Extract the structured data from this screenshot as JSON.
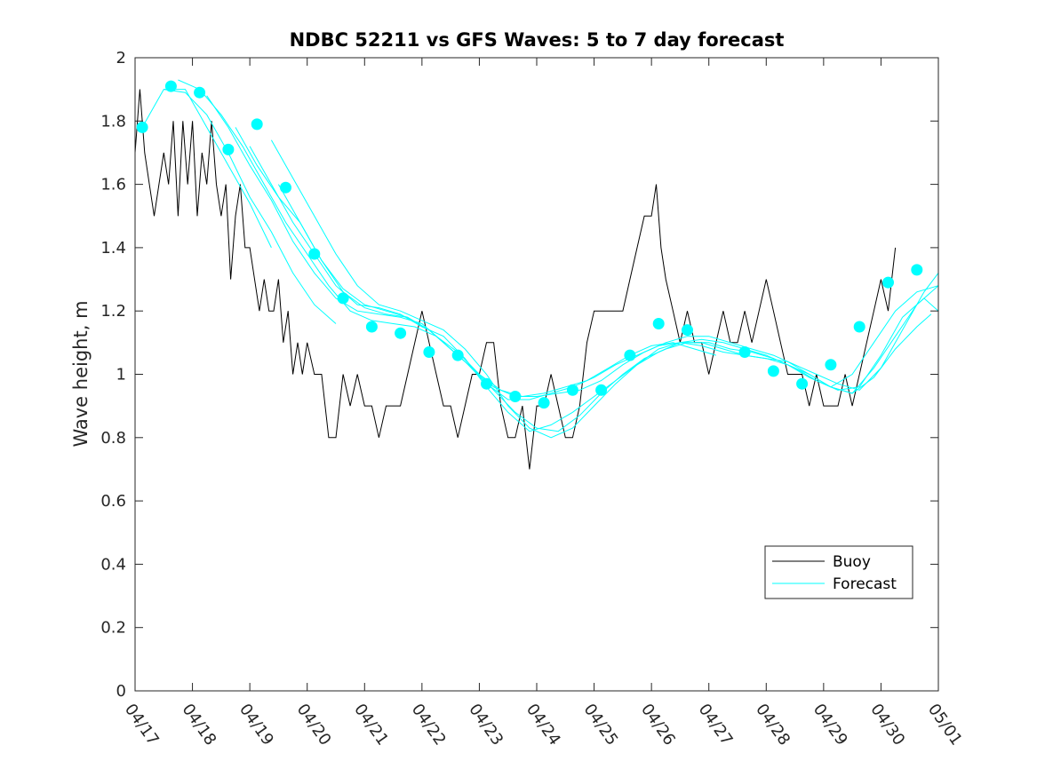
{
  "chart_data": {
    "type": "line",
    "title": "NDBC 52211 vs GFS Waves: 5 to 7 day forecast",
    "xlabel": "",
    "ylabel": "Wave height, m",
    "ylim": [
      0,
      2
    ],
    "yticks": [
      0,
      0.2,
      0.4,
      0.6,
      0.8,
      1,
      1.2,
      1.4,
      1.6,
      1.8,
      2
    ],
    "ytick_labels": [
      "0",
      "0.2",
      "0.4",
      "0.6",
      "0.8",
      "1",
      "1.2",
      "1.4",
      "1.6",
      "1.8",
      "2"
    ],
    "x_range": [
      "04/17",
      "05/01"
    ],
    "xtick_labels": [
      "04/17",
      "04/18",
      "04/19",
      "04/20",
      "04/21",
      "04/22",
      "04/23",
      "04/24",
      "04/25",
      "04/26",
      "04/27",
      "04/28",
      "04/29",
      "04/30",
      "05/01"
    ],
    "grid": false,
    "legend": {
      "position": "bottom-right",
      "entries": [
        {
          "label": "Buoy",
          "color": "#000000"
        },
        {
          "label": "Forecast",
          "color": "#00ffff"
        }
      ]
    },
    "colors": {
      "buoy": "#000000",
      "forecast": "#00ffff",
      "markers": "#00ffff"
    },
    "buoy": {
      "x": [
        "04/17 00:00",
        "04/17 02:00",
        "04/17 04:00",
        "04/17 06:00",
        "04/17 08:00",
        "04/17 10:00",
        "04/17 12:00",
        "04/17 14:00",
        "04/17 16:00",
        "04/17 18:00",
        "04/17 20:00",
        "04/17 22:00",
        "04/18 00:00",
        "04/18 02:00",
        "04/18 04:00",
        "04/18 06:00",
        "04/18 08:00",
        "04/18 10:00",
        "04/18 12:00",
        "04/18 14:00",
        "04/18 16:00",
        "04/18 18:00",
        "04/18 20:00",
        "04/18 22:00",
        "04/19 00:00",
        "04/19 02:00",
        "04/19 04:00",
        "04/19 06:00",
        "04/19 08:00",
        "04/19 10:00",
        "04/19 12:00",
        "04/19 14:00",
        "04/19 16:00",
        "04/19 18:00",
        "04/19 20:00",
        "04/19 22:00",
        "04/20 00:00",
        "04/20 03:00",
        "04/20 06:00",
        "04/20 09:00",
        "04/20 12:00",
        "04/20 15:00",
        "04/20 18:00",
        "04/20 21:00",
        "04/21 00:00",
        "04/21 03:00",
        "04/21 06:00",
        "04/21 09:00",
        "04/21 12:00",
        "04/21 15:00",
        "04/21 18:00",
        "04/21 21:00",
        "04/22 00:00",
        "04/22 03:00",
        "04/22 06:00",
        "04/22 09:00",
        "04/22 12:00",
        "04/22 15:00",
        "04/22 18:00",
        "04/22 21:00",
        "04/23 00:00",
        "04/23 03:00",
        "04/23 06:00",
        "04/23 09:00",
        "04/23 12:00",
        "04/23 15:00",
        "04/23 18:00",
        "04/23 21:00",
        "04/24 00:00",
        "04/24 03:00",
        "04/24 06:00",
        "04/24 09:00",
        "04/24 12:00",
        "04/24 15:00",
        "04/24 18:00",
        "04/24 21:00",
        "04/25 00:00",
        "04/25 03:00",
        "04/25 06:00",
        "04/25 09:00",
        "04/25 12:00",
        "04/25 15:00",
        "04/25 18:00",
        "04/25 21:00",
        "04/26 00:00",
        "04/26 02:00",
        "04/26 04:00",
        "04/26 06:00",
        "04/26 09:00",
        "04/26 12:00",
        "04/26 15:00",
        "04/26 18:00",
        "04/26 21:00",
        "04/27 00:00",
        "04/27 03:00",
        "04/27 06:00",
        "04/27 09:00",
        "04/27 12:00",
        "04/27 15:00",
        "04/27 18:00",
        "04/27 21:00",
        "04/28 00:00",
        "04/28 03:00",
        "04/28 06:00",
        "04/28 09:00",
        "04/28 12:00",
        "04/28 15:00",
        "04/28 18:00",
        "04/28 21:00",
        "04/29 00:00",
        "04/29 03:00",
        "04/29 06:00",
        "04/29 09:00",
        "04/29 12:00",
        "04/29 15:00",
        "04/29 18:00",
        "04/29 21:00",
        "04/30 00:00",
        "04/30 03:00",
        "04/30 06:00"
      ],
      "y": [
        1.7,
        1.9,
        1.7,
        1.6,
        1.5,
        1.6,
        1.7,
        1.6,
        1.8,
        1.5,
        1.8,
        1.6,
        1.8,
        1.5,
        1.7,
        1.6,
        1.8,
        1.6,
        1.5,
        1.6,
        1.3,
        1.5,
        1.6,
        1.4,
        1.4,
        1.3,
        1.2,
        1.3,
        1.2,
        1.2,
        1.3,
        1.1,
        1.2,
        1.0,
        1.1,
        1.0,
        1.1,
        1.0,
        1.0,
        0.8,
        0.8,
        1.0,
        0.9,
        1.0,
        0.9,
        0.9,
        0.8,
        0.9,
        0.9,
        0.9,
        1.0,
        1.1,
        1.2,
        1.1,
        1.0,
        0.9,
        0.9,
        0.8,
        0.9,
        1.0,
        1.0,
        1.1,
        1.1,
        0.9,
        0.8,
        0.8,
        0.9,
        0.7,
        0.9,
        0.9,
        1.0,
        0.9,
        0.8,
        0.8,
        0.9,
        1.1,
        1.2,
        1.2,
        1.2,
        1.2,
        1.2,
        1.3,
        1.4,
        1.5,
        1.5,
        1.6,
        1.4,
        1.3,
        1.2,
        1.1,
        1.2,
        1.1,
        1.1,
        1.0,
        1.1,
        1.2,
        1.1,
        1.1,
        1.2,
        1.1,
        1.2,
        1.3,
        1.2,
        1.1,
        1.0,
        1.0,
        1.0,
        0.9,
        1.0,
        0.9,
        0.9,
        0.9,
        1.0,
        0.9,
        1.0,
        1.1,
        1.2,
        1.3,
        1.2,
        1.4
      ]
    },
    "forecast_series": [
      {
        "x": [
          "04/17 03:00",
          "04/17 12:00",
          "04/17 21:00",
          "04/18 06:00",
          "04/18 15:00",
          "04/19 00:00",
          "04/19 09:00"
        ],
        "y": [
          1.78,
          1.9,
          1.9,
          1.78,
          1.66,
          1.54,
          1.4
        ]
      },
      {
        "x": [
          "04/17 12:00",
          "04/17 21:00",
          "04/18 06:00",
          "04/18 15:00",
          "04/19 00:00",
          "04/19 09:00",
          "04/19 18:00",
          "04/20 03:00",
          "04/20 12:00"
        ],
        "y": [
          1.9,
          1.89,
          1.82,
          1.7,
          1.56,
          1.45,
          1.32,
          1.22,
          1.16
        ]
      },
      {
        "x": [
          "04/17 18:00",
          "04/18 03:00",
          "04/18 12:00",
          "04/18 21:00",
          "04/19 06:00",
          "04/19 15:00",
          "04/20 00:00",
          "04/20 09:00",
          "04/20 18:00",
          "04/21 03:00",
          "04/21 12:00",
          "04/21 21:00",
          "04/22 06:00",
          "04/22 15:00",
          "04/23 00:00",
          "04/23 09:00",
          "04/23 18:00",
          "04/24 03:00",
          "04/24 12:00",
          "04/24 21:00",
          "04/25 06:00",
          "04/25 15:00",
          "04/26 00:00",
          "04/26 09:00",
          "04/26 18:00",
          "04/27 03:00"
        ],
        "y": [
          1.93,
          1.9,
          1.82,
          1.72,
          1.6,
          1.48,
          1.38,
          1.28,
          1.2,
          1.17,
          1.16,
          1.15,
          1.12,
          1.07,
          1.0,
          0.95,
          0.93,
          0.94,
          0.96,
          0.98,
          1.02,
          1.06,
          1.09,
          1.1,
          1.08,
          1.06
        ]
      },
      {
        "x": [
          "04/18 06:00",
          "04/18 15:00",
          "04/19 00:00",
          "04/19 09:00",
          "04/19 18:00",
          "04/20 03:00",
          "04/20 12:00",
          "04/20 21:00",
          "04/21 06:00",
          "04/21 15:00",
          "04/22 00:00",
          "04/22 09:00",
          "04/22 18:00",
          "04/23 03:00",
          "04/23 12:00",
          "04/23 21:00",
          "04/24 06:00",
          "04/24 15:00",
          "04/25 00:00",
          "04/25 09:00",
          "04/25 18:00",
          "04/26 03:00",
          "04/26 12:00",
          "04/26 21:00",
          "04/27 06:00",
          "04/27 15:00",
          "04/28 00:00",
          "04/28 09:00",
          "04/28 18:00",
          "04/29 03:00",
          "04/29 12:00",
          "04/29 21:00",
          "04/30 06:00",
          "04/30 15:00",
          "05/01 00:00"
        ],
        "y": [
          1.88,
          1.78,
          1.66,
          1.55,
          1.42,
          1.32,
          1.24,
          1.2,
          1.19,
          1.18,
          1.16,
          1.1,
          1.04,
          0.97,
          0.92,
          0.92,
          0.94,
          0.96,
          0.99,
          1.03,
          1.06,
          1.09,
          1.1,
          1.11,
          1.1,
          1.08,
          1.06,
          1.03,
          0.99,
          0.96,
          1.0,
          1.1,
          1.2,
          1.26,
          1.28
        ]
      },
      {
        "x": [
          "04/18 18:00",
          "04/19 03:00",
          "04/19 12:00",
          "04/19 21:00",
          "04/20 06:00",
          "04/20 15:00",
          "04/21 00:00",
          "04/21 09:00",
          "04/21 18:00",
          "04/22 03:00",
          "04/22 12:00",
          "04/22 21:00",
          "04/23 06:00",
          "04/23 15:00",
          "04/24 00:00",
          "04/24 09:00",
          "04/24 18:00",
          "04/25 03:00",
          "04/25 12:00",
          "04/25 21:00",
          "04/26 06:00",
          "04/26 15:00",
          "04/27 00:00",
          "04/27 09:00",
          "04/27 18:00",
          "04/28 03:00",
          "04/28 12:00",
          "04/28 21:00",
          "04/29 06:00",
          "04/29 15:00",
          "04/30 00:00",
          "04/30 09:00",
          "04/30 18:00",
          "05/01 00:00"
        ],
        "y": [
          1.78,
          1.66,
          1.56,
          1.48,
          1.36,
          1.26,
          1.21,
          1.19,
          1.18,
          1.14,
          1.08,
          1.02,
          0.96,
          0.93,
          0.93,
          0.94,
          0.95,
          0.98,
          1.03,
          1.07,
          1.1,
          1.12,
          1.12,
          1.1,
          1.08,
          1.06,
          1.03,
          1.0,
          0.97,
          0.95,
          1.02,
          1.14,
          1.26,
          1.32
        ]
      },
      {
        "x": [
          "04/19 00:00",
          "04/19 09:00",
          "04/19 18:00",
          "04/20 03:00",
          "04/20 12:00",
          "04/20 21:00",
          "04/21 06:00",
          "04/21 15:00",
          "04/22 00:00",
          "04/22 09:00",
          "04/22 18:00",
          "04/23 03:00",
          "04/23 12:00",
          "04/23 21:00",
          "04/24 06:00",
          "04/24 15:00",
          "04/25 00:00",
          "04/25 09:00",
          "04/25 18:00",
          "04/26 03:00",
          "04/26 12:00",
          "04/26 21:00",
          "04/27 06:00",
          "04/27 15:00",
          "04/28 00:00",
          "04/28 09:00",
          "04/28 18:00",
          "04/29 03:00",
          "04/29 12:00",
          "04/29 21:00",
          "04/30 06:00",
          "04/30 15:00",
          "05/01 00:00"
        ],
        "y": [
          1.72,
          1.6,
          1.48,
          1.38,
          1.28,
          1.22,
          1.21,
          1.19,
          1.15,
          1.12,
          1.05,
          0.96,
          0.88,
          0.82,
          0.84,
          0.88,
          0.93,
          0.98,
          1.03,
          1.07,
          1.1,
          1.1,
          1.08,
          1.06,
          1.05,
          1.04,
          1.0,
          0.96,
          0.94,
          1.02,
          1.12,
          1.22,
          1.28
        ]
      },
      {
        "x": [
          "04/19 09:00",
          "04/19 18:00",
          "04/20 03:00",
          "04/20 12:00",
          "04/20 21:00",
          "04/21 06:00",
          "04/21 15:00",
          "04/22 00:00",
          "04/22 09:00",
          "04/22 18:00",
          "04/23 03:00",
          "04/23 12:00",
          "04/23 21:00",
          "04/24 06:00",
          "04/24 15:00",
          "04/25 00:00",
          "04/25 09:00",
          "04/25 18:00",
          "04/26 03:00",
          "04/26 12:00",
          "04/26 21:00",
          "04/27 06:00",
          "04/27 15:00",
          "04/28 00:00",
          "04/28 09:00",
          "04/28 18:00",
          "04/29 03:00",
          "04/29 12:00",
          "04/29 21:00",
          "04/30 06:00",
          "04/30 15:00",
          "04/30 21:00"
        ],
        "y": [
          1.74,
          1.62,
          1.5,
          1.38,
          1.28,
          1.22,
          1.2,
          1.17,
          1.14,
          1.08,
          1.0,
          0.9,
          0.83,
          0.8,
          0.83,
          0.9,
          0.97,
          1.03,
          1.08,
          1.1,
          1.09,
          1.07,
          1.06,
          1.05,
          1.03,
          1.0,
          0.96,
          0.94,
          0.99,
          1.08,
          1.15,
          1.19
        ]
      },
      {
        "x": [
          "04/19 12:00",
          "04/19 21:00",
          "04/20 06:00",
          "04/20 15:00",
          "04/21 00:00",
          "04/21 09:00",
          "04/21 18:00",
          "04/22 03:00",
          "04/22 12:00",
          "04/22 21:00",
          "04/23 06:00",
          "04/23 15:00",
          "04/24 00:00",
          "04/24 09:00",
          "04/24 18:00",
          "04/25 03:00",
          "04/25 12:00",
          "04/25 21:00",
          "04/26 06:00",
          "04/26 15:00",
          "04/27 00:00",
          "04/27 09:00",
          "04/27 18:00",
          "04/28 03:00",
          "04/28 12:00",
          "04/28 21:00",
          "04/29 06:00",
          "04/29 15:00",
          "04/30 00:00",
          "04/30 09:00",
          "04/30 18:00",
          "05/01 00:00"
        ],
        "y": [
          1.6,
          1.48,
          1.36,
          1.27,
          1.22,
          1.2,
          1.18,
          1.14,
          1.08,
          1.02,
          0.95,
          0.88,
          0.83,
          0.82,
          0.87,
          0.94,
          1.0,
          1.05,
          1.08,
          1.1,
          1.1,
          1.08,
          1.07,
          1.05,
          1.02,
          0.98,
          0.95,
          0.96,
          1.06,
          1.18,
          1.24,
          1.2
        ]
      }
    ],
    "forecast_markers": {
      "x": [
        "04/17 03:00",
        "04/17 15:00",
        "04/18 03:00",
        "04/18 15:00",
        "04/19 03:00",
        "04/19 15:00",
        "04/20 03:00",
        "04/20 15:00",
        "04/21 03:00",
        "04/21 15:00",
        "04/22 03:00",
        "04/22 15:00",
        "04/23 03:00",
        "04/23 15:00",
        "04/24 03:00",
        "04/24 15:00",
        "04/25 03:00",
        "04/25 15:00",
        "04/26 03:00",
        "04/26 15:00",
        "04/27 15:00",
        "04/28 03:00",
        "04/28 15:00",
        "04/29 03:00",
        "04/29 15:00",
        "04/30 03:00",
        "04/30 15:00"
      ],
      "y": [
        1.78,
        1.91,
        1.89,
        1.71,
        1.79,
        1.59,
        1.38,
        1.24,
        1.15,
        1.13,
        1.07,
        1.06,
        0.97,
        0.93,
        0.91,
        0.95,
        0.95,
        1.06,
        1.16,
        1.14,
        1.07,
        1.01,
        0.97,
        1.03,
        1.15,
        1.29,
        1.33
      ]
    }
  }
}
